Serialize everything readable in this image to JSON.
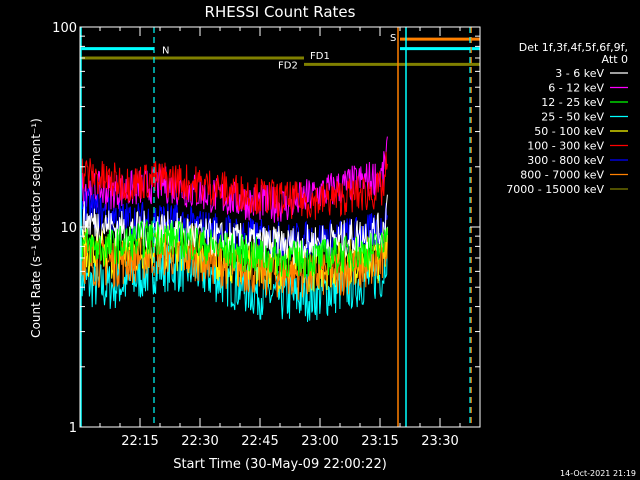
{
  "chart_data": {
    "type": "line",
    "title": "RHESSI Count Rates",
    "xlabel": "Start Time (30-May-09 22:00:22)",
    "ylabel": "Count Rate (s⁻¹ detector segment⁻¹)",
    "yscale": "log",
    "ylim": [
      1,
      100
    ],
    "xlim_minutes": [
      0,
      100
    ],
    "x_ticks": [
      "22:15",
      "22:30",
      "22:45",
      "23:00",
      "23:15",
      "23:30"
    ],
    "x_tick_minutes": [
      15,
      30,
      45,
      60,
      75,
      90
    ],
    "y_ticks": [
      "1",
      "10",
      "100"
    ],
    "legend_header": [
      "Det 1f,3f,4f,5f,6f,9f,",
      "Att 0"
    ],
    "legend_position": "right",
    "timestamp": "14-Oct-2021 21:19",
    "series": [
      {
        "name": "3 - 6 keV",
        "color": "#ffffff",
        "y": [
          11.0,
          10.2,
          9.6,
          9.8,
          9.2,
          8.6,
          8.3,
          8.1,
          8.4,
          8.7,
          9.3,
          9.6
        ]
      },
      {
        "name": "6 - 12 keV",
        "color": "#ff00ff",
        "y": [
          16.0,
          15.0,
          15.3,
          16.5,
          15.2,
          14.0,
          13.2,
          13.0,
          14.8,
          16.0,
          17.2,
          18.5
        ]
      },
      {
        "name": "12 - 25 keV",
        "color": "#00ff00",
        "y": [
          8.2,
          7.8,
          8.4,
          9.0,
          8.4,
          7.7,
          7.2,
          6.9,
          7.0,
          7.3,
          7.6,
          7.9
        ]
      },
      {
        "name": "25 - 50 keV",
        "color": "#00ffff",
        "y": [
          5.4,
          5.0,
          5.3,
          6.4,
          6.2,
          5.4,
          4.7,
          4.4,
          4.6,
          5.0,
          5.5,
          6.0
        ]
      },
      {
        "name": "50 - 100 keV",
        "color": "#ffff00",
        "y": [
          7.6,
          7.2,
          7.4,
          8.2,
          7.8,
          7.0,
          6.6,
          6.3,
          6.4,
          6.7,
          6.9,
          7.2
        ]
      },
      {
        "name": "100 - 300 keV",
        "color": "#ff0000",
        "y": [
          19.0,
          17.2,
          16.5,
          17.5,
          16.6,
          15.4,
          14.4,
          13.6,
          13.5,
          14.2,
          14.8,
          15.5
        ]
      },
      {
        "name": "300 - 800 keV",
        "color": "#0000ff",
        "y": [
          13.0,
          11.6,
          10.8,
          11.0,
          10.2,
          9.5,
          8.9,
          8.5,
          8.7,
          9.0,
          9.4,
          9.7
        ]
      },
      {
        "name": "800 - 7000 keV",
        "color": "#ff8000",
        "y": [
          7.0,
          6.6,
          6.9,
          7.6,
          7.3,
          6.6,
          6.1,
          5.8,
          5.9,
          6.1,
          6.4,
          6.7
        ]
      },
      {
        "name": "7000 - 15000 keV",
        "color": "#808000",
        "y": []
      }
    ],
    "series_x_minutes": [
      0,
      6,
      12,
      20,
      28,
      36,
      44,
      52,
      60,
      66,
      72,
      77
    ],
    "annotations": {
      "night": {
        "label": "N",
        "color": "#00ffff",
        "start_minute": 0,
        "end_minute": 18.5,
        "y": 78
      },
      "night2": {
        "color": "#00ffff",
        "start_minute": 80,
        "end_minute": 100,
        "y": 78
      },
      "saa": {
        "label": "S",
        "color": "#ff8000",
        "start_minute": 80,
        "end_minute": 100,
        "y": 87
      },
      "fd1": {
        "label": "FD1",
        "color": "#808000",
        "start_minute": 0,
        "end_minute": 56,
        "y": 70
      },
      "fd2": {
        "label": "FD2",
        "color": "#808000",
        "start_minute": 56,
        "end_minute": 100,
        "y": 65
      },
      "vlines_solid": [
        {
          "minute": 79.5,
          "color": "#ff8000"
        },
        {
          "minute": 81.5,
          "color": "#00ffff"
        }
      ],
      "vlines_dashed": [
        {
          "minute": 18.5,
          "color": "#00ffff"
        },
        {
          "minute": 97.5,
          "color": "#00ffff"
        },
        {
          "minute": 97.8,
          "color": "#ff8000"
        }
      ]
    }
  }
}
